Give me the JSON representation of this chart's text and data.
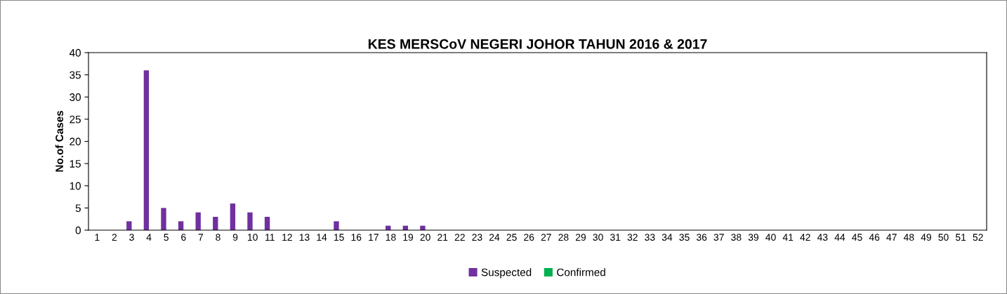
{
  "chart_data": {
    "type": "bar",
    "title": "KES MERSCoV NEGERI JOHOR TAHUN 2016 & 2017",
    "ylabel": "No.of Cases",
    "categories": [
      "1",
      "2",
      "3",
      "4",
      "5",
      "6",
      "7",
      "8",
      "9",
      "10",
      "11",
      "12",
      "13",
      "14",
      "15",
      "16",
      "17",
      "18",
      "19",
      "20",
      "21",
      "22",
      "23",
      "24",
      "25",
      "26",
      "27",
      "28",
      "29",
      "30",
      "31",
      "32",
      "33",
      "34",
      "35",
      "36",
      "37",
      "38",
      "39",
      "40",
      "41",
      "42",
      "43",
      "44",
      "45",
      "46",
      "47",
      "48",
      "49",
      "50",
      "51",
      "52"
    ],
    "series": [
      {
        "name": "Suspected",
        "color": "#7030a0",
        "values": [
          0,
          0,
          2,
          36,
          5,
          2,
          4,
          3,
          6,
          4,
          3,
          0,
          0,
          0,
          2,
          0,
          0,
          1,
          1,
          1,
          0,
          0,
          0,
          0,
          0,
          0,
          0,
          0,
          0,
          0,
          0,
          0,
          0,
          0,
          0,
          0,
          0,
          0,
          0,
          0,
          0,
          0,
          0,
          0,
          0,
          0,
          0,
          0,
          0,
          0,
          0,
          0
        ]
      },
      {
        "name": "Confirmed",
        "color": "#00b050",
        "values": [
          0,
          0,
          0,
          0,
          0,
          0,
          0,
          0,
          0,
          0,
          0,
          0,
          0,
          0,
          0,
          0,
          0,
          0,
          0,
          0,
          0,
          0,
          0,
          0,
          0,
          0,
          0,
          0,
          0,
          0,
          0,
          0,
          0,
          0,
          0,
          0,
          0,
          0,
          0,
          0,
          0,
          0,
          0,
          0,
          0,
          0,
          0,
          0,
          0,
          0,
          0,
          0
        ]
      }
    ],
    "ylim": [
      0,
      40
    ],
    "yticks": [
      0,
      5,
      10,
      15,
      20,
      25,
      30,
      35,
      40
    ],
    "grid": false,
    "legend": "bottom"
  }
}
